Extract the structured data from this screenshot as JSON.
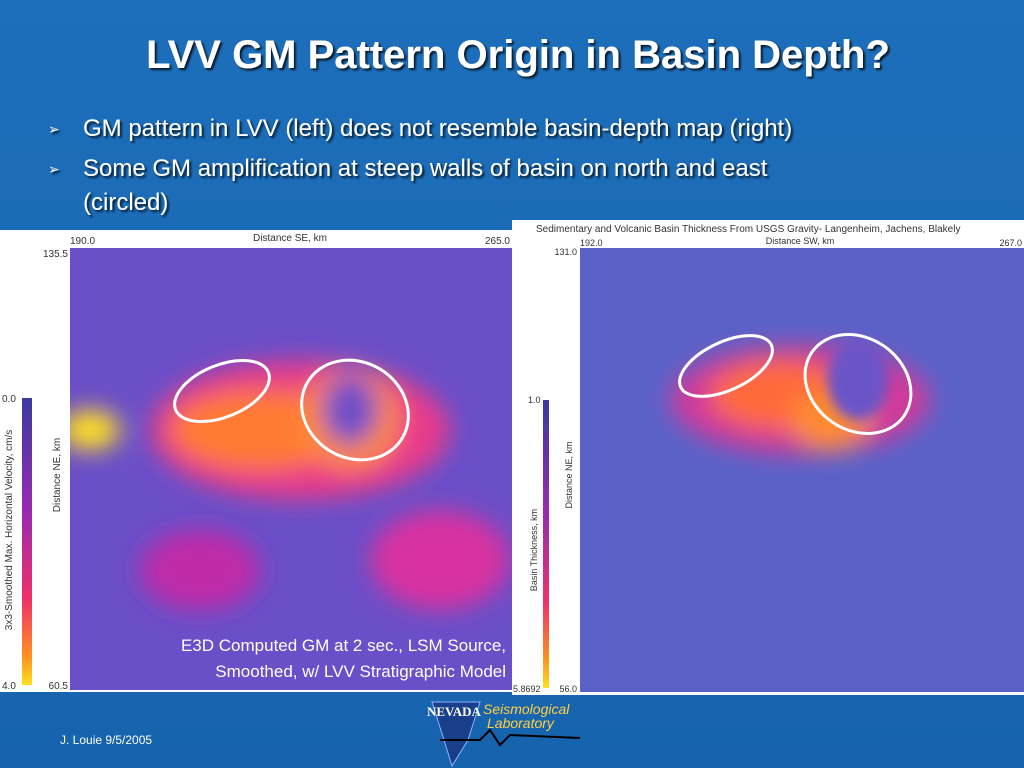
{
  "title": "LVV GM Pattern Origin in Basin Depth?",
  "bullets": [
    "GM pattern in LVV (left) does not resemble basin-depth map (right)",
    "Some GM amplification at steep walls of basin on north and east",
    "(circled)"
  ],
  "left_map": {
    "x_axis_label": "Distance SE, km",
    "x_start": "190.0",
    "x_end": "265.0",
    "y_axis_label": "Distance NE, km",
    "y_top": "135.5",
    "y_bottom": "60.5",
    "colorbar_label": "3x3-Smoothed Max. Horizontal Velocity, cm/s",
    "colorbar_top": "0.0",
    "colorbar_bottom": "4.0",
    "caption": [
      "E3D Computed GM at 2 sec., LSM Source,",
      "Smoothed, w/  LVV Stratigraphic Model"
    ]
  },
  "right_map": {
    "title": "Sedimentary and Volcanic Basin Thickness From USGS Gravity- Langenheim, Jachens, Blakely",
    "x_axis_label": "Distance SW, km",
    "x_start": "192.0",
    "x_end": "267.0",
    "y_axis_label": "Distance NE, km",
    "y_top": "131.0",
    "y_bottom": "56.0",
    "colorbar_label": "Basin Thickness, km",
    "colorbar_top": "1.0",
    "colorbar_bottom": "5.8692"
  },
  "footer": {
    "author": "J. Louie 9/5/2005",
    "logo_name": "NEVADA",
    "logo_line1": "Seismological",
    "logo_line2": "Laboratory"
  }
}
